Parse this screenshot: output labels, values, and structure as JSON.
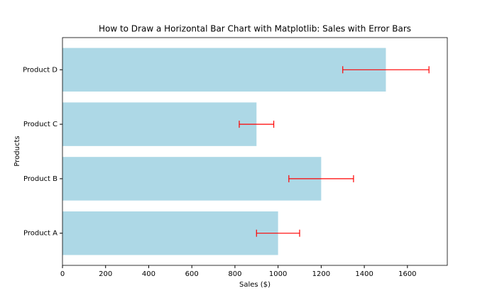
{
  "chart_data": {
    "type": "barh",
    "title": "How to Draw a Horizontal Bar Chart with Matplotlib: Sales with Error Bars",
    "xlabel": "Sales ($)",
    "ylabel": "Products",
    "categories": [
      "Product A",
      "Product B",
      "Product C",
      "Product D"
    ],
    "values": [
      1000,
      1200,
      900,
      1500
    ],
    "errors": [
      100,
      150,
      80,
      200
    ],
    "color": "#add8e6",
    "error_color": "#ff0000",
    "xlim": [
      0,
      1785
    ],
    "xticks": [
      0,
      200,
      400,
      600,
      800,
      1000,
      1200,
      1400,
      1600
    ]
  }
}
